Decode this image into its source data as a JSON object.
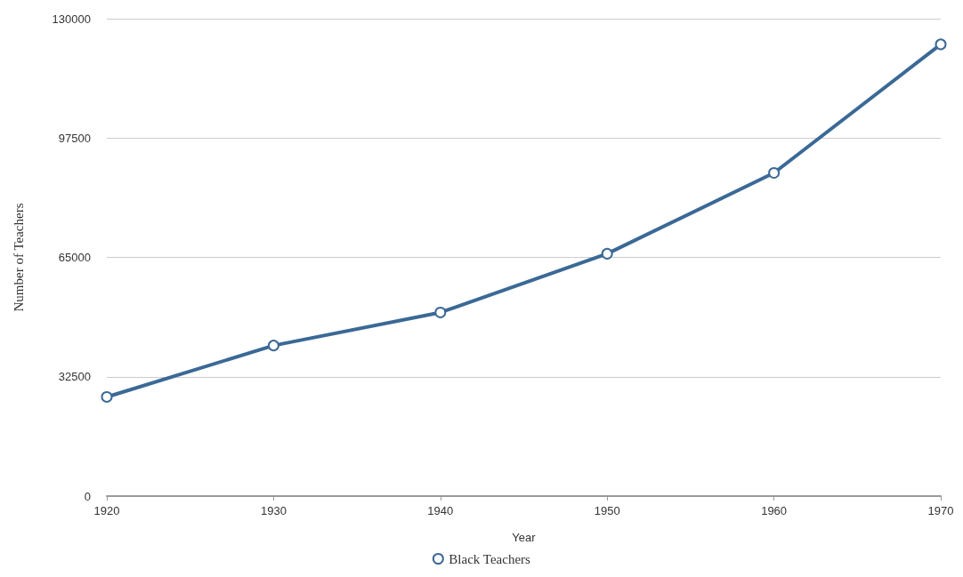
{
  "chart_data": {
    "type": "line",
    "xlabel": "Year",
    "ylabel": "Number of Teachers",
    "x": [
      1920,
      1930,
      1940,
      1950,
      1960,
      1970
    ],
    "series": [
      {
        "name": "Black Teachers",
        "color": "#3b6996",
        "values": [
          27000,
          41000,
          50000,
          66000,
          88000,
          123000
        ]
      }
    ],
    "xlim": [
      1920,
      1970
    ],
    "xticks": [
      1920,
      1930,
      1940,
      1950,
      1960,
      1970
    ],
    "ylim": [
      0,
      130000
    ],
    "yticks": [
      0,
      32500,
      65000,
      97500,
      130000
    ],
    "grid": "y",
    "legend": "bottom",
    "marker": "circle",
    "line_style": "solid"
  }
}
